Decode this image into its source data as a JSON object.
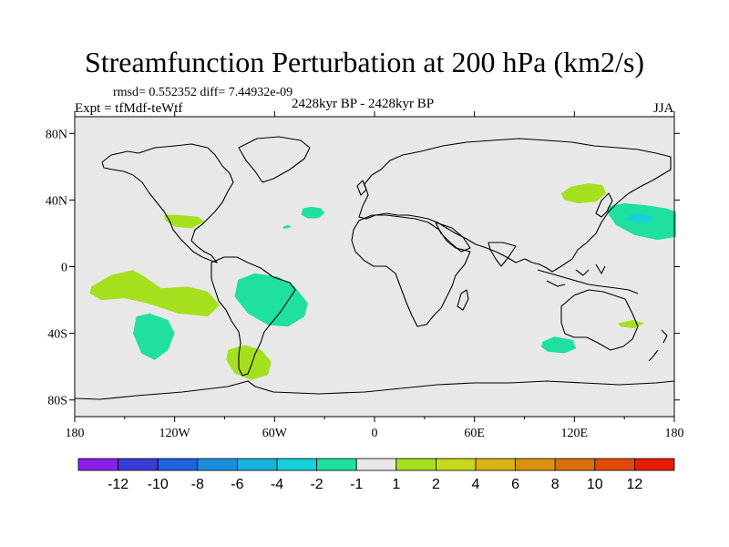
{
  "colors": {
    "background": "#e8e8e8",
    "coast": "#000000",
    "palette": [
      "#8a1fe8",
      "#3a3ad6",
      "#1f62e0",
      "#1b8fdd",
      "#17b3dc",
      "#14d1d9",
      "#1fe0a0",
      "#e8e8e8",
      "#a5e01f",
      "#c8d81c",
      "#d9b214",
      "#d9920e",
      "#d9700a",
      "#e04a07",
      "#e81c05"
    ]
  },
  "chart_data": {
    "type": "heatmap",
    "title": "Streamfunction Perturbation at 200 hPa (km2/s)",
    "rmsd_text": "rmsd= 0.552352 diff= 7.44932e-09",
    "experiment": "Expt = tfMdf-teWtf",
    "period": "2428kyr BP - 2428kyr BP",
    "season": "JJA",
    "x_range": [
      -180,
      180
    ],
    "y_range": [
      -90,
      90
    ],
    "x_ticks": [
      {
        "value": -180,
        "label": "180"
      },
      {
        "value": -120,
        "label": "120W"
      },
      {
        "value": -60,
        "label": "60W"
      },
      {
        "value": 0,
        "label": "0"
      },
      {
        "value": 60,
        "label": "60E"
      },
      {
        "value": 120,
        "label": "120E"
      },
      {
        "value": 180,
        "label": "180"
      }
    ],
    "y_ticks": [
      {
        "value": 80,
        "label": "80N"
      },
      {
        "value": 40,
        "label": "40N"
      },
      {
        "value": 0,
        "label": "0"
      },
      {
        "value": -40,
        "label": "40S"
      },
      {
        "value": -80,
        "label": "80S"
      }
    ],
    "colorbar_labels": [
      "-12",
      "-10",
      "-8",
      "-6",
      "-4",
      "-2",
      "-1",
      "1",
      "2",
      "4",
      "6",
      "8",
      "10",
      "12"
    ],
    "anomaly_regions": [
      {
        "name": "north-atlantic-negative",
        "category": "-2 to -1",
        "color_index": 6,
        "outline": [
          [
            -43,
            35
          ],
          [
            -38,
            36
          ],
          [
            -32,
            35
          ],
          [
            -30,
            32
          ],
          [
            -34,
            29
          ],
          [
            -40,
            29
          ],
          [
            -44,
            31
          ]
        ]
      },
      {
        "name": "subtropical-atlantic-negative",
        "category": "-2 to -1",
        "color_index": 6,
        "outline": [
          [
            -55,
            24
          ],
          [
            -52,
            25
          ],
          [
            -50,
            24
          ],
          [
            -52,
            23
          ],
          [
            -55,
            23
          ]
        ]
      },
      {
        "name": "north-pacific-negative",
        "category": "-2 to -1",
        "color_index": 6,
        "outline": [
          [
            140,
            36
          ],
          [
            150,
            38
          ],
          [
            162,
            37
          ],
          [
            175,
            35
          ],
          [
            181,
            33
          ],
          [
            181,
            18
          ],
          [
            170,
            16
          ],
          [
            156,
            19
          ],
          [
            145,
            25
          ],
          [
            140,
            32
          ]
        ]
      },
      {
        "name": "north-pacific-core",
        "category": "-4 to -2",
        "color_index": 5,
        "outline": [
          [
            153,
            31
          ],
          [
            160,
            32
          ],
          [
            167,
            30
          ],
          [
            166,
            27
          ],
          [
            158,
            26
          ],
          [
            152,
            28
          ]
        ]
      },
      {
        "name": "south-america-negative",
        "category": "-2 to -1",
        "color_index": 6,
        "outline": [
          [
            -82,
            -8
          ],
          [
            -72,
            -4
          ],
          [
            -58,
            -6
          ],
          [
            -48,
            -12
          ],
          [
            -40,
            -22
          ],
          [
            -42,
            -30
          ],
          [
            -52,
            -36
          ],
          [
            -64,
            -35
          ],
          [
            -76,
            -28
          ],
          [
            -84,
            -18
          ]
        ]
      },
      {
        "name": "south-pacific-negative",
        "category": "-2 to -1",
        "color_index": 6,
        "outline": [
          [
            -143,
            -30
          ],
          [
            -135,
            -28
          ],
          [
            -124,
            -32
          ],
          [
            -120,
            -40
          ],
          [
            -124,
            -50
          ],
          [
            -132,
            -56
          ],
          [
            -140,
            -52
          ],
          [
            -145,
            -40
          ]
        ]
      },
      {
        "name": "south-indian-negative",
        "category": "-2 to -1",
        "color_index": 6,
        "outline": [
          [
            101,
            -45
          ],
          [
            108,
            -42
          ],
          [
            119,
            -44
          ],
          [
            121,
            -49
          ],
          [
            114,
            -52
          ],
          [
            104,
            -51
          ],
          [
            100,
            -48
          ]
        ]
      },
      {
        "name": "north-america-positive",
        "category": "1 to 2",
        "color_index": 8,
        "outline": [
          [
            -126,
            31
          ],
          [
            -118,
            31
          ],
          [
            -106,
            30
          ],
          [
            -102,
            27
          ],
          [
            -110,
            23
          ],
          [
            -120,
            24
          ],
          [
            -126,
            28
          ]
        ]
      },
      {
        "name": "east-asia-positive",
        "category": "1 to 2",
        "color_index": 8,
        "outline": [
          [
            112,
            44
          ],
          [
            118,
            48
          ],
          [
            128,
            50
          ],
          [
            137,
            49
          ],
          [
            139,
            44
          ],
          [
            133,
            39
          ],
          [
            122,
            38
          ],
          [
            114,
            40
          ]
        ]
      },
      {
        "name": "tropical-pacific-positive",
        "category": "1 to 2",
        "color_index": 8,
        "outline": [
          [
            -170,
            -12
          ],
          [
            -158,
            -5
          ],
          [
            -145,
            -2
          ],
          [
            -138,
            -6
          ],
          [
            -128,
            -13
          ],
          [
            -112,
            -12
          ],
          [
            -100,
            -15
          ],
          [
            -93,
            -23
          ],
          [
            -100,
            -30
          ],
          [
            -118,
            -28
          ],
          [
            -136,
            -22
          ],
          [
            -150,
            -19
          ],
          [
            -164,
            -20
          ],
          [
            -171,
            -16
          ]
        ]
      },
      {
        "name": "southern-ocean-positive",
        "category": "1 to 2",
        "color_index": 8,
        "outline": [
          [
            -88,
            -50
          ],
          [
            -78,
            -47
          ],
          [
            -68,
            -50
          ],
          [
            -62,
            -57
          ],
          [
            -64,
            -65
          ],
          [
            -74,
            -68
          ],
          [
            -84,
            -64
          ],
          [
            -89,
            -56
          ]
        ]
      },
      {
        "name": "tasman-positive",
        "category": "1 to 2",
        "color_index": 8,
        "outline": [
          [
            146,
            -34
          ],
          [
            155,
            -32
          ],
          [
            162,
            -34
          ],
          [
            156,
            -37
          ],
          [
            148,
            -36
          ]
        ]
      }
    ]
  }
}
